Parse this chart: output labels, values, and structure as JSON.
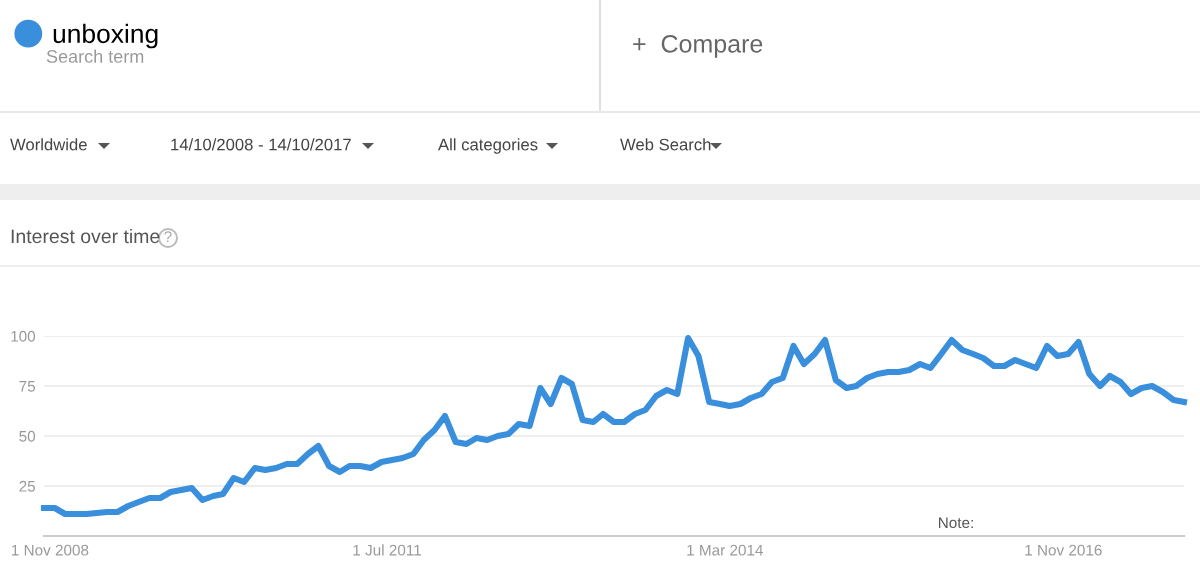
{
  "chart_data": {
    "type": "line",
    "title": "Interest over time",
    "legend": "top left",
    "grid": "y",
    "marker": "none",
    "line_style": "solid",
    "annotations": [
      "Search term",
      "+  Compare",
      "Worldwide",
      "14/10/2008 - 14/10/2017",
      "All categories",
      "Web Search",
      "?",
      "Note:"
    ],
    "xlim": [
      "2008-10",
      "2017-10"
    ],
    "ylim": [
      0,
      100
    ],
    "xticks": [
      {
        "value": "2008-11-01",
        "label": "1 Nov 2008"
      },
      {
        "value": "2011-07-01",
        "label": "1 Jul 2011"
      },
      {
        "value": "2014-03-01",
        "label": "1 Mar 2014"
      },
      {
        "value": "2016-11-01",
        "label": "1 Nov 2016"
      }
    ],
    "yticks": [
      25,
      50,
      75,
      100
    ],
    "series": [
      {
        "name": "unboxing",
        "color": "#3a8fdc",
        "x": [
          "2008-10",
          "2008-11",
          "2008-12",
          "2009-02",
          "2009-04",
          "2009-05",
          "2009-06",
          "2009-07",
          "2009-08",
          "2009-09",
          "2009-10",
          "2009-12",
          "2010-01",
          "2010-02",
          "2010-03",
          "2010-04",
          "2010-05",
          "2010-06",
          "2010-07",
          "2010-08",
          "2010-09",
          "2010-10",
          "2010-11",
          "2010-12",
          "2011-01",
          "2011-02",
          "2011-03",
          "2011-04",
          "2011-05",
          "2011-06",
          "2011-08",
          "2011-09",
          "2011-10",
          "2011-11",
          "2011-12",
          "2012-01",
          "2012-02",
          "2012-03",
          "2012-04",
          "2012-05",
          "2012-06",
          "2012-07",
          "2012-08",
          "2012-09",
          "2012-10",
          "2012-11",
          "2012-12",
          "2013-01",
          "2013-02",
          "2013-03",
          "2013-04",
          "2013-05",
          "2013-06",
          "2013-07",
          "2013-08",
          "2013-09",
          "2013-10",
          "2013-11",
          "2013-12",
          "2014-01",
          "2014-02",
          "2014-03",
          "2014-04",
          "2014-05",
          "2014-06",
          "2014-07",
          "2014-08",
          "2014-09",
          "2014-10",
          "2014-11",
          "2014-12",
          "2015-01",
          "2015-02",
          "2015-03",
          "2015-04",
          "2015-05",
          "2015-06",
          "2015-07",
          "2015-08",
          "2015-09",
          "2015-10",
          "2015-11",
          "2015-12",
          "2016-01",
          "2016-02",
          "2016-03",
          "2016-04",
          "2016-05",
          "2016-06",
          "2016-07",
          "2016-08",
          "2016-09",
          "2016-10",
          "2016-11",
          "2016-12",
          "2017-01",
          "2017-02",
          "2017-03",
          "2017-04",
          "2017-05",
          "2017-06",
          "2017-07",
          "2017-08",
          "2017-09",
          "2017-10"
        ],
        "values": [
          14,
          14,
          11,
          11,
          12,
          12,
          15,
          17,
          19,
          19,
          22,
          24,
          18,
          20,
          21,
          29,
          27,
          34,
          33,
          34,
          36,
          36,
          41,
          45,
          35,
          32,
          35,
          35,
          34,
          37,
          39,
          41,
          48,
          53,
          60,
          47,
          46,
          49,
          48,
          50,
          51,
          56,
          55,
          74,
          66,
          79,
          76,
          58,
          57,
          61,
          57,
          57,
          61,
          63,
          70,
          73,
          71,
          99,
          90,
          67,
          66,
          65,
          66,
          69,
          71,
          77,
          79,
          95,
          86,
          91,
          98,
          78,
          74,
          75,
          79,
          81,
          82,
          82,
          83,
          86,
          84,
          91,
          98,
          93,
          91,
          89,
          85,
          85,
          88,
          86,
          84,
          95,
          90,
          91,
          97,
          81,
          75,
          80,
          77,
          71,
          74,
          75,
          72,
          68,
          67
        ]
      }
    ]
  }
}
